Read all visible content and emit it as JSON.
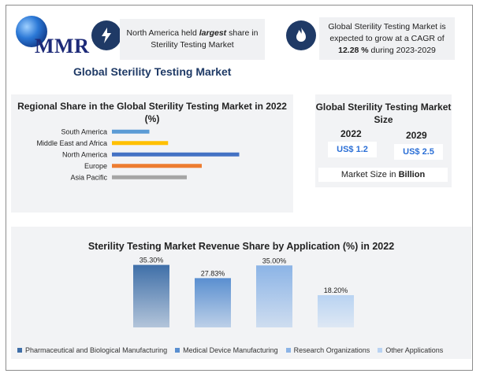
{
  "logo_text": "MMR",
  "callouts": {
    "left": {
      "pre": "North America held ",
      "emph": "largest",
      "post": " share in Sterility Testing Market"
    },
    "right": {
      "pre": "Global Sterility Testing Market is expected to grow at a CAGR of ",
      "emph": "12.28 %",
      "post": " during 2023-2029"
    }
  },
  "main_title": "Global Sterility Testing Market",
  "market_size": {
    "title": "Global Sterility Testing Market Size",
    "year1": "2022",
    "value1": "US$ 1.2",
    "year2": "2029",
    "value2": "US$ 2.5",
    "unit_pre": "Market Size in ",
    "unit_bold": "Billion"
  },
  "chart_data": [
    {
      "type": "bar",
      "orientation": "horizontal",
      "title": "Regional Share in the Global Sterility Testing Market in 2022 (%)",
      "categories": [
        "South America",
        "Middle East and Africa",
        "North America",
        "Europe",
        "Asia Pacific"
      ],
      "values": [
        10,
        15,
        34,
        24,
        20
      ],
      "colors": [
        "#5b9bd5",
        "#ffc000",
        "#4472c4",
        "#ed7d31",
        "#a5a5a5"
      ],
      "xlim": [
        0,
        40
      ],
      "grid": false,
      "legend": "none"
    },
    {
      "type": "bar",
      "title": "Sterility Testing Market Revenue Share by Application (%) in 2022",
      "categories": [
        "Pharmaceutical and Biological Manufacturing",
        "Medical Device Manufacturing",
        "Research Organizations",
        "Other Applications"
      ],
      "values": [
        35.3,
        27.83,
        35.0,
        18.2
      ],
      "data_labels": [
        "35.30%",
        "27.83%",
        "35.00%",
        "18.20%"
      ],
      "colors": [
        "#3f6fa8",
        "#5a8fd0",
        "#8cb4e6",
        "#b9d3f2"
      ],
      "ylim": [
        0,
        40
      ],
      "grid": false,
      "legend": "bottom"
    }
  ]
}
